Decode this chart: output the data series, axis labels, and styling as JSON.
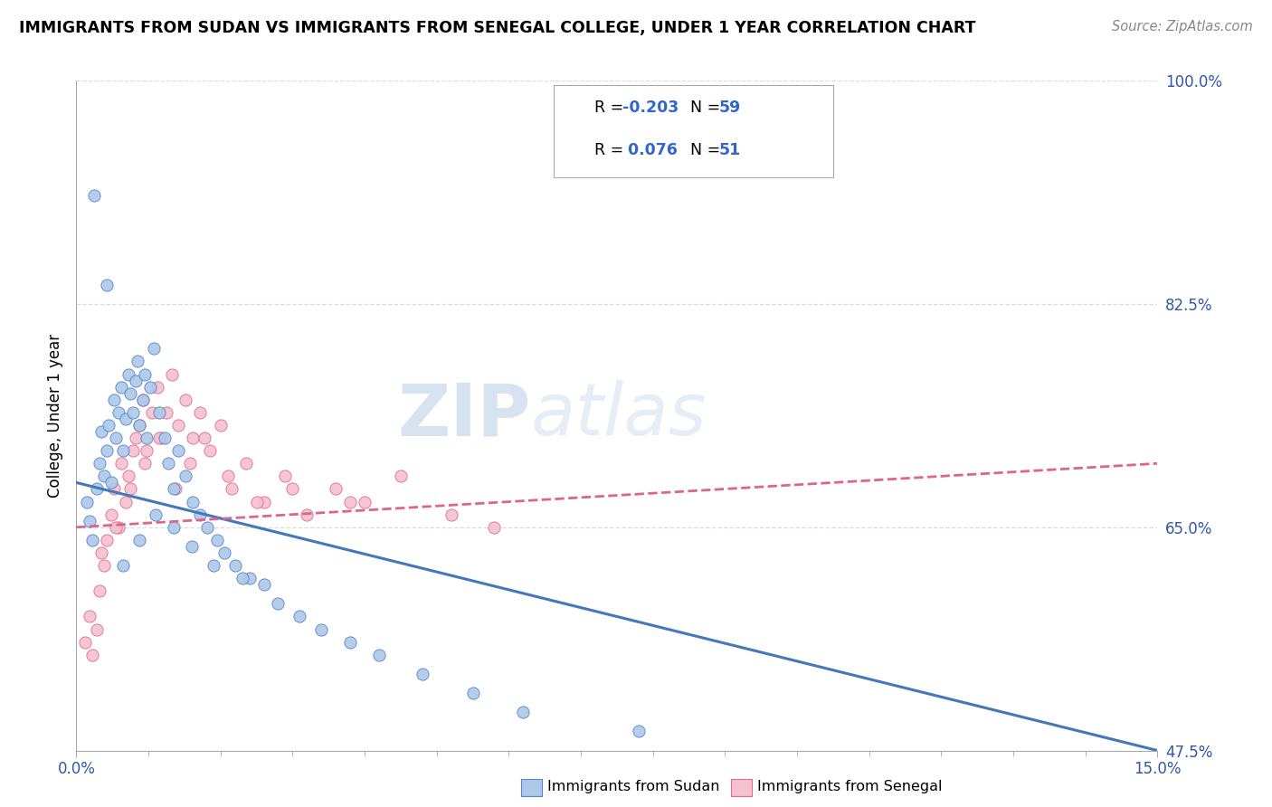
{
  "title": "IMMIGRANTS FROM SUDAN VS IMMIGRANTS FROM SENEGAL COLLEGE, UNDER 1 YEAR CORRELATION CHART",
  "source": "Source: ZipAtlas.com",
  "ylabel": "College, Under 1 year",
  "xlim": [
    0.0,
    15.0
  ],
  "ylim": [
    47.5,
    100.0
  ],
  "ytick_values": [
    100.0,
    82.5,
    65.0,
    47.5
  ],
  "legend_R_sudan": "-0.203",
  "legend_N_sudan": "59",
  "legend_R_senegal": "0.076",
  "legend_N_senegal": "51",
  "color_sudan_fill": "#adc8e8",
  "color_sudan_edge": "#5588cc",
  "color_senegal_fill": "#f5c0d0",
  "color_senegal_edge": "#e0708a",
  "color_line_sudan": "#4477bb",
  "color_line_senegal": "#dd6688",
  "color_text_blue": "#3366cc",
  "color_axis_text": "#3355aa",
  "watermark_zip": "ZIP",
  "watermark_atlas": "atlas",
  "background_color": "#ffffff",
  "grid_color": "#dddddd",
  "sudan_x": [
    0.15,
    0.18,
    0.22,
    0.28,
    0.32,
    0.35,
    0.38,
    0.42,
    0.45,
    0.48,
    0.52,
    0.55,
    0.58,
    0.62,
    0.65,
    0.68,
    0.72,
    0.75,
    0.78,
    0.82,
    0.85,
    0.88,
    0.92,
    0.95,
    0.98,
    1.02,
    1.08,
    1.15,
    1.22,
    1.28,
    1.35,
    1.42,
    1.52,
    1.62,
    1.72,
    1.82,
    1.95,
    2.05,
    2.2,
    2.4,
    2.6,
    2.8,
    3.1,
    3.4,
    3.8,
    4.2,
    4.8,
    5.5,
    6.2,
    7.8,
    0.25,
    0.42,
    0.65,
    0.88,
    1.1,
    1.35,
    1.6,
    1.9,
    2.3
  ],
  "sudan_y": [
    67.0,
    65.5,
    64.0,
    68.0,
    70.0,
    72.5,
    69.0,
    71.0,
    73.0,
    68.5,
    75.0,
    72.0,
    74.0,
    76.0,
    71.0,
    73.5,
    77.0,
    75.5,
    74.0,
    76.5,
    78.0,
    73.0,
    75.0,
    77.0,
    72.0,
    76.0,
    79.0,
    74.0,
    72.0,
    70.0,
    68.0,
    71.0,
    69.0,
    67.0,
    66.0,
    65.0,
    64.0,
    63.0,
    62.0,
    61.0,
    60.5,
    59.0,
    58.0,
    57.0,
    56.0,
    55.0,
    53.5,
    52.0,
    50.5,
    49.0,
    91.0,
    84.0,
    62.0,
    64.0,
    66.0,
    65.0,
    63.5,
    62.0,
    61.0
  ],
  "senegal_x": [
    0.12,
    0.18,
    0.22,
    0.28,
    0.32,
    0.38,
    0.42,
    0.48,
    0.52,
    0.58,
    0.62,
    0.68,
    0.72,
    0.78,
    0.82,
    0.88,
    0.92,
    0.98,
    1.05,
    1.12,
    1.18,
    1.25,
    1.32,
    1.42,
    1.52,
    1.62,
    1.72,
    1.85,
    2.0,
    2.15,
    2.35,
    2.6,
    2.9,
    3.2,
    3.6,
    4.0,
    4.5,
    5.2,
    0.35,
    0.55,
    0.75,
    0.95,
    1.15,
    1.38,
    1.58,
    1.78,
    2.1,
    2.5,
    3.0,
    3.8,
    5.8
  ],
  "senegal_y": [
    56.0,
    58.0,
    55.0,
    57.0,
    60.0,
    62.0,
    64.0,
    66.0,
    68.0,
    65.0,
    70.0,
    67.0,
    69.0,
    71.0,
    72.0,
    73.0,
    75.0,
    71.0,
    74.0,
    76.0,
    72.0,
    74.0,
    77.0,
    73.0,
    75.0,
    72.0,
    74.0,
    71.0,
    73.0,
    68.0,
    70.0,
    67.0,
    69.0,
    66.0,
    68.0,
    67.0,
    69.0,
    66.0,
    63.0,
    65.0,
    68.0,
    70.0,
    72.0,
    68.0,
    70.0,
    72.0,
    69.0,
    67.0,
    68.0,
    67.0,
    65.0
  ],
  "trend_sudan_x0": 0.0,
  "trend_sudan_y0": 68.5,
  "trend_sudan_x1": 15.0,
  "trend_sudan_y1": 47.5,
  "trend_senegal_x0": 0.0,
  "trend_senegal_y0": 65.0,
  "trend_senegal_x1": 15.0,
  "trend_senegal_y1": 70.0
}
